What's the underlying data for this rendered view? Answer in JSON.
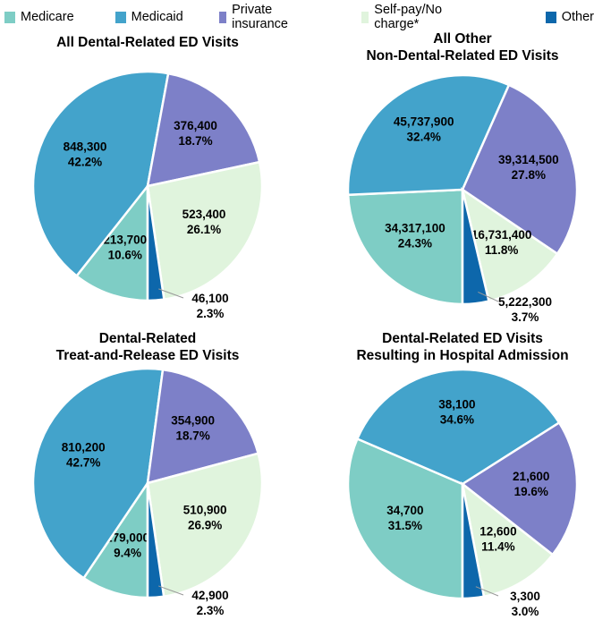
{
  "legend": [
    {
      "label": "Medicare",
      "color": "#7ecdc5"
    },
    {
      "label": "Medicaid",
      "color": "#43a3cb"
    },
    {
      "label": "Private insurance",
      "color": "#7d80c8"
    },
    {
      "label": "Self-pay/No charge*",
      "color": "#e0f4dd"
    },
    {
      "label": "Other",
      "color": "#0d67ab"
    }
  ],
  "chart_data": [
    {
      "type": "pie",
      "title": "All Dental-Related ED Visits",
      "categories": [
        "Medicare",
        "Medicaid",
        "Private insurance",
        "Self-pay/No charge*",
        "Other"
      ],
      "values": [
        213700,
        848300,
        376400,
        523400,
        46100
      ],
      "labels": [
        "213,700",
        "848,300",
        "376,400",
        "523,400",
        "46,100"
      ],
      "percents": [
        "10.6%",
        "42.2%",
        "18.7%",
        "26.1%",
        "2.3%"
      ]
    },
    {
      "type": "pie",
      "title": "All Other\nNon-Dental-Related ED Visits",
      "categories": [
        "Medicare",
        "Medicaid",
        "Private insurance",
        "Self-pay/No charge*",
        "Other"
      ],
      "values": [
        34317100,
        45737900,
        39314500,
        16731400,
        5222300
      ],
      "labels": [
        "34,317,100",
        "45,737,900",
        "39,314,500",
        "16,731,400",
        "5,222,300"
      ],
      "percents": [
        "24.3%",
        "32.4%",
        "27.8%",
        "11.8%",
        "3.7%"
      ]
    },
    {
      "type": "pie",
      "title": "Dental-Related\nTreat-and-Release ED Visits",
      "categories": [
        "Medicare",
        "Medicaid",
        "Private insurance",
        "Self-pay/No charge*",
        "Other"
      ],
      "values": [
        179000,
        810200,
        354900,
        510900,
        42900
      ],
      "labels": [
        "179,000",
        "810,200",
        "354,900",
        "510,900",
        "42,900"
      ],
      "percents": [
        "9.4%",
        "42.7%",
        "18.7%",
        "26.9%",
        "2.3%"
      ]
    },
    {
      "type": "pie",
      "title": "Dental-Related ED Visits\nResulting in Hospital Admission",
      "categories": [
        "Medicare",
        "Medicaid",
        "Private insurance",
        "Self-pay/No charge*",
        "Other"
      ],
      "values": [
        34700,
        38100,
        21600,
        12600,
        3300
      ],
      "labels": [
        "34,700",
        "38,100",
        "21,600",
        "12,600",
        "3,300"
      ],
      "percents": [
        "31.5%",
        "34.6%",
        "19.6%",
        "11.4%",
        "3.0%"
      ]
    }
  ]
}
